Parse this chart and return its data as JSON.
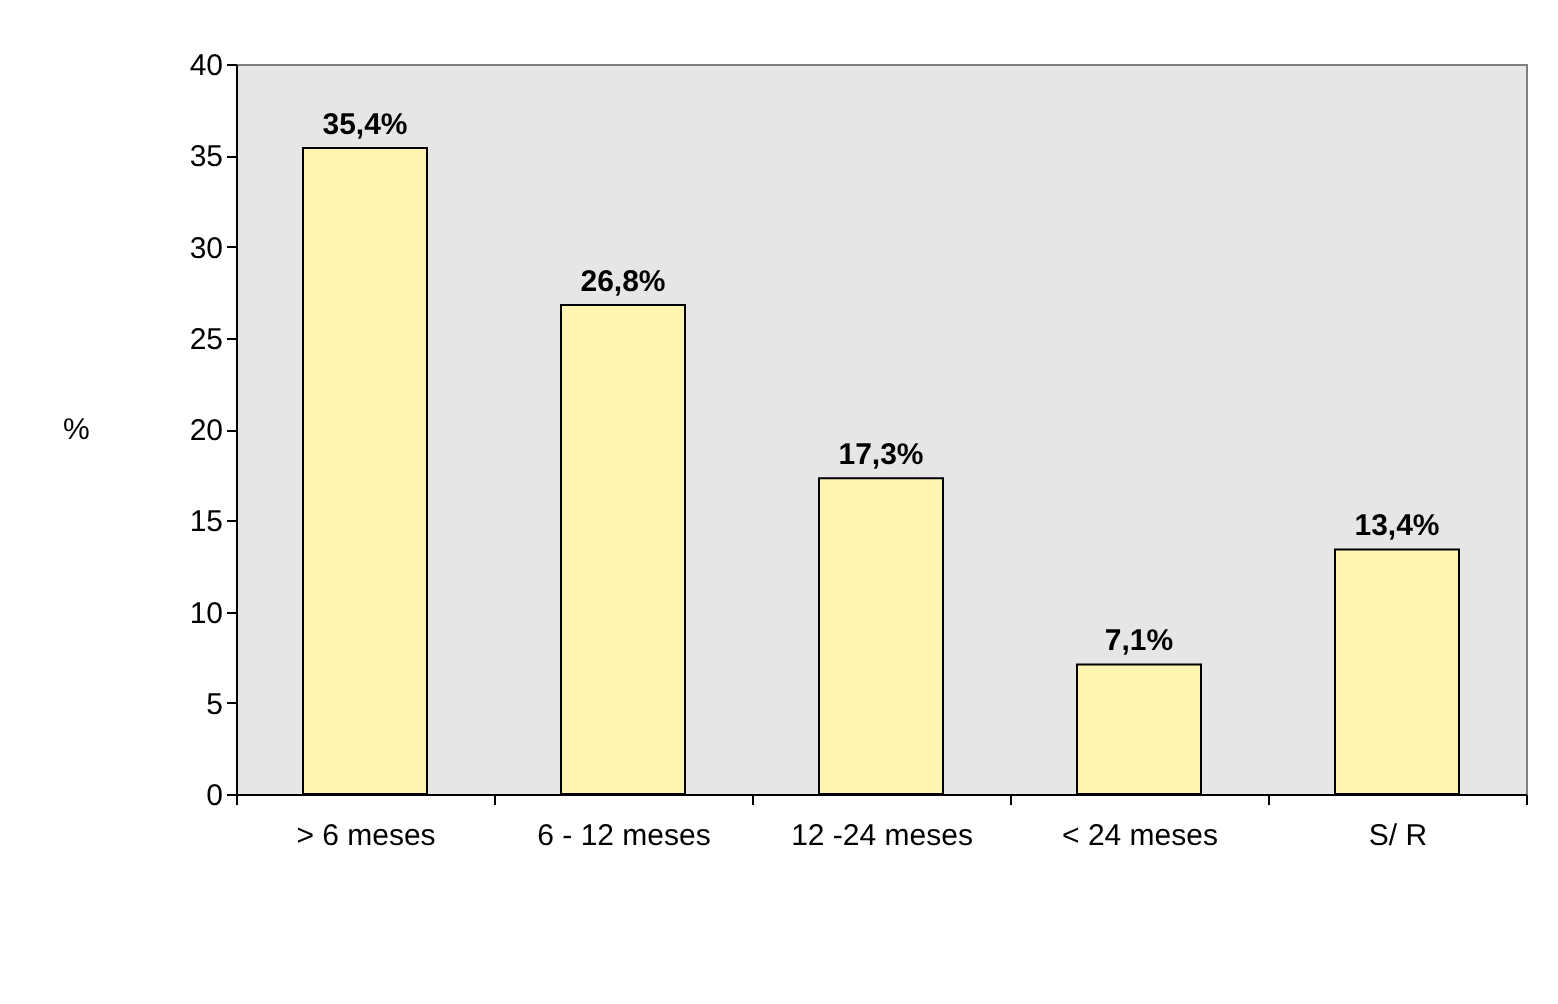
{
  "chart_data": {
    "type": "bar",
    "ylabel": "%",
    "categories": [
      "> 6 meses",
      "6 - 12 meses",
      "12 -24 meses",
      "< 24 meses",
      "S/ R"
    ],
    "values": [
      35.4,
      26.8,
      17.3,
      7.1,
      13.4
    ],
    "value_labels": [
      "35,4%",
      "26,8%",
      "17,3%",
      "7,1%",
      "13,4%"
    ],
    "color": "#fff5b0",
    "ylim": [
      0,
      40
    ],
    "yticks": [
      0,
      5,
      10,
      15,
      20,
      25,
      30,
      35,
      40
    ],
    "grid": false
  }
}
